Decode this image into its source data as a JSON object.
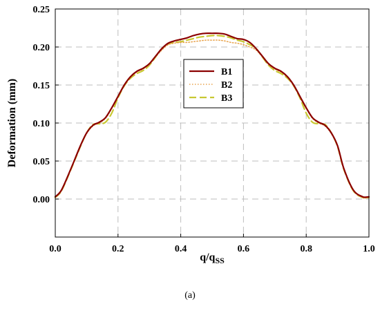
{
  "chart_data": {
    "type": "line",
    "title": "",
    "xlabel": "q/q",
    "xlabel_sub": "SS",
    "ylabel": "Deformation (mm)",
    "caption": "(a)",
    "xlim": [
      0,
      1
    ],
    "ylim": [
      -0.05,
      0.25
    ],
    "x_ticks": [
      0.0,
      0.2,
      0.4,
      0.6,
      0.8,
      1.0
    ],
    "x_tick_labels": [
      "0.0",
      "0.2",
      "0.4",
      "0.6",
      "0.8",
      "1.0"
    ],
    "y_ticks": [
      0.0,
      0.05,
      0.1,
      0.15,
      0.2,
      0.25
    ],
    "y_tick_labels": [
      "0.00",
      "0.05",
      "0.10",
      "0.15",
      "0.20",
      "0.25"
    ],
    "grid": true,
    "legend_position": "center",
    "colors": {
      "B1": "#8b0000",
      "B2": "#e8a24a",
      "B3": "#c8c832",
      "grid": "#bdbdbd",
      "frame": "#000000"
    },
    "series": [
      {
        "name": "B1",
        "style": "solid",
        "x": [
          0,
          0.02,
          0.05,
          0.08,
          0.1,
          0.12,
          0.14,
          0.16,
          0.18,
          0.2,
          0.22,
          0.24,
          0.26,
          0.28,
          0.3,
          0.32,
          0.34,
          0.36,
          0.38,
          0.4,
          0.42,
          0.44,
          0.46,
          0.48,
          0.5,
          0.52,
          0.54,
          0.56,
          0.58,
          0.6,
          0.62,
          0.64,
          0.66,
          0.68,
          0.7,
          0.72,
          0.74,
          0.76,
          0.78,
          0.8,
          0.82,
          0.84,
          0.86,
          0.88,
          0.9,
          0.92,
          0.95,
          0.98,
          1.0
        ],
        "y": [
          0.003,
          0.012,
          0.04,
          0.07,
          0.087,
          0.097,
          0.101,
          0.107,
          0.12,
          0.135,
          0.15,
          0.161,
          0.168,
          0.172,
          0.178,
          0.188,
          0.198,
          0.205,
          0.208,
          0.21,
          0.212,
          0.215,
          0.217,
          0.218,
          0.218,
          0.218,
          0.217,
          0.214,
          0.211,
          0.21,
          0.206,
          0.198,
          0.188,
          0.178,
          0.172,
          0.168,
          0.161,
          0.15,
          0.135,
          0.12,
          0.107,
          0.101,
          0.097,
          0.087,
          0.07,
          0.04,
          0.012,
          0.003,
          0.003
        ]
      },
      {
        "name": "B2",
        "style": "dotted",
        "x": [
          0,
          0.02,
          0.05,
          0.08,
          0.1,
          0.12,
          0.14,
          0.16,
          0.18,
          0.2,
          0.22,
          0.24,
          0.26,
          0.28,
          0.3,
          0.32,
          0.34,
          0.36,
          0.38,
          0.4,
          0.42,
          0.44,
          0.46,
          0.48,
          0.5,
          0.52,
          0.54,
          0.56,
          0.58,
          0.6,
          0.62,
          0.64,
          0.66,
          0.68,
          0.7,
          0.72,
          0.74,
          0.76,
          0.78,
          0.8,
          0.82,
          0.84,
          0.86,
          0.88,
          0.9,
          0.92,
          0.95,
          0.98,
          1.0
        ],
        "y": [
          0.002,
          0.011,
          0.039,
          0.069,
          0.086,
          0.096,
          0.1,
          0.106,
          0.119,
          0.134,
          0.149,
          0.16,
          0.167,
          0.171,
          0.177,
          0.187,
          0.196,
          0.203,
          0.205,
          0.206,
          0.206,
          0.207,
          0.208,
          0.209,
          0.209,
          0.209,
          0.208,
          0.206,
          0.205,
          0.203,
          0.2,
          0.196,
          0.187,
          0.177,
          0.171,
          0.167,
          0.16,
          0.149,
          0.134,
          0.119,
          0.106,
          0.1,
          0.096,
          0.086,
          0.069,
          0.039,
          0.011,
          0.002,
          0.002
        ]
      },
      {
        "name": "B3",
        "style": "dashed",
        "x": [
          0,
          0.02,
          0.05,
          0.08,
          0.1,
          0.12,
          0.14,
          0.16,
          0.18,
          0.2,
          0.22,
          0.24,
          0.26,
          0.28,
          0.3,
          0.32,
          0.34,
          0.36,
          0.38,
          0.4,
          0.42,
          0.44,
          0.46,
          0.48,
          0.5,
          0.52,
          0.54,
          0.56,
          0.58,
          0.6,
          0.62,
          0.64,
          0.66,
          0.68,
          0.7,
          0.72,
          0.74,
          0.76,
          0.78,
          0.8,
          0.82,
          0.84,
          0.86,
          0.88,
          0.9,
          0.92,
          0.95,
          0.98,
          1.0
        ],
        "y": [
          0.002,
          0.011,
          0.039,
          0.069,
          0.087,
          0.098,
          0.099,
          0.101,
          0.113,
          0.133,
          0.149,
          0.159,
          0.165,
          0.169,
          0.176,
          0.187,
          0.198,
          0.204,
          0.206,
          0.207,
          0.209,
          0.211,
          0.213,
          0.214,
          0.215,
          0.215,
          0.214,
          0.212,
          0.209,
          0.207,
          0.203,
          0.198,
          0.187,
          0.176,
          0.169,
          0.165,
          0.159,
          0.149,
          0.133,
          0.113,
          0.101,
          0.099,
          0.098,
          0.087,
          0.069,
          0.039,
          0.011,
          0.002,
          0.002
        ]
      }
    ]
  }
}
